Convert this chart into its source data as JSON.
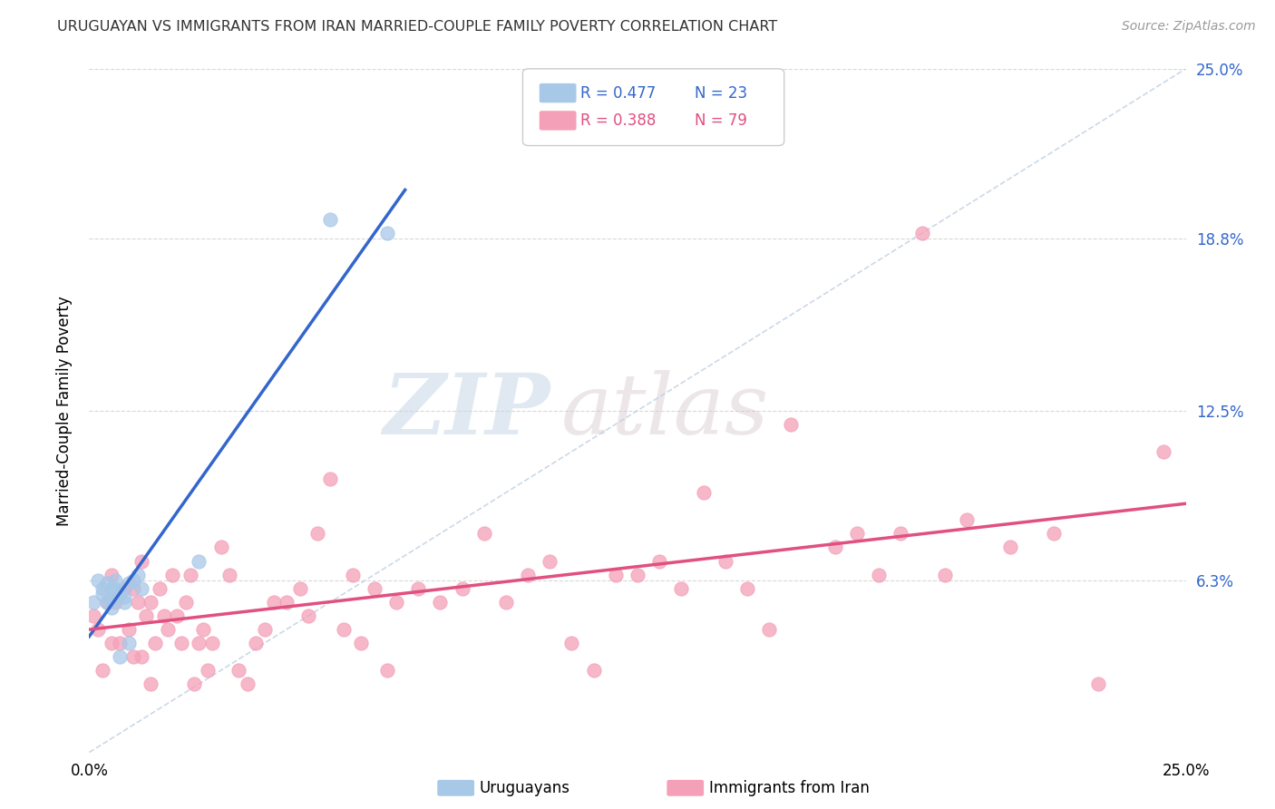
{
  "title": "URUGUAYAN VS IMMIGRANTS FROM IRAN MARRIED-COUPLE FAMILY POVERTY CORRELATION CHART",
  "source": "Source: ZipAtlas.com",
  "ylabel": "Married-Couple Family Poverty",
  "xlim": [
    0,
    0.25
  ],
  "ylim": [
    0,
    0.25
  ],
  "legend_r1": "R = 0.477",
  "legend_n1": "N = 23",
  "legend_r2": "R = 0.388",
  "legend_n2": "N = 79",
  "color_uruguayan": "#a8c8e8",
  "color_iran": "#f4a0b8",
  "color_trend_uruguayan": "#3366cc",
  "color_trend_iran": "#e05080",
  "color_diagonal": "#c0cfe0",
  "watermark_zip": "ZIP",
  "watermark_atlas": "atlas",
  "uruguayan_x": [
    0.001,
    0.002,
    0.003,
    0.003,
    0.004,
    0.004,
    0.005,
    0.005,
    0.005,
    0.006,
    0.006,
    0.007,
    0.007,
    0.008,
    0.008,
    0.009,
    0.009,
    0.01,
    0.011,
    0.012,
    0.025,
    0.055,
    0.068
  ],
  "uruguayan_y": [
    0.055,
    0.063,
    0.06,
    0.058,
    0.062,
    0.055,
    0.06,
    0.056,
    0.053,
    0.06,
    0.063,
    0.058,
    0.035,
    0.055,
    0.057,
    0.062,
    0.04,
    0.063,
    0.065,
    0.06,
    0.07,
    0.195,
    0.19
  ],
  "iran_x": [
    0.001,
    0.002,
    0.003,
    0.004,
    0.005,
    0.005,
    0.006,
    0.007,
    0.008,
    0.009,
    0.01,
    0.01,
    0.011,
    0.012,
    0.012,
    0.013,
    0.014,
    0.014,
    0.015,
    0.016,
    0.017,
    0.018,
    0.019,
    0.02,
    0.021,
    0.022,
    0.023,
    0.024,
    0.025,
    0.026,
    0.027,
    0.028,
    0.03,
    0.032,
    0.034,
    0.036,
    0.038,
    0.04,
    0.042,
    0.045,
    0.048,
    0.05,
    0.052,
    0.055,
    0.058,
    0.06,
    0.062,
    0.065,
    0.068,
    0.07,
    0.075,
    0.08,
    0.085,
    0.09,
    0.095,
    0.1,
    0.105,
    0.11,
    0.115,
    0.12,
    0.125,
    0.13,
    0.135,
    0.14,
    0.145,
    0.15,
    0.155,
    0.16,
    0.17,
    0.175,
    0.18,
    0.185,
    0.19,
    0.195,
    0.2,
    0.21,
    0.22,
    0.23,
    0.245
  ],
  "iran_y": [
    0.05,
    0.045,
    0.03,
    0.055,
    0.065,
    0.04,
    0.055,
    0.04,
    0.06,
    0.045,
    0.06,
    0.035,
    0.055,
    0.07,
    0.035,
    0.05,
    0.025,
    0.055,
    0.04,
    0.06,
    0.05,
    0.045,
    0.065,
    0.05,
    0.04,
    0.055,
    0.065,
    0.025,
    0.04,
    0.045,
    0.03,
    0.04,
    0.075,
    0.065,
    0.03,
    0.025,
    0.04,
    0.045,
    0.055,
    0.055,
    0.06,
    0.05,
    0.08,
    0.1,
    0.045,
    0.065,
    0.04,
    0.06,
    0.03,
    0.055,
    0.06,
    0.055,
    0.06,
    0.08,
    0.055,
    0.065,
    0.07,
    0.04,
    0.03,
    0.065,
    0.065,
    0.07,
    0.06,
    0.095,
    0.07,
    0.06,
    0.045,
    0.12,
    0.075,
    0.08,
    0.065,
    0.08,
    0.19,
    0.065,
    0.085,
    0.075,
    0.08,
    0.025,
    0.11
  ],
  "trend_u_x0": 0.0,
  "trend_u_x1": 0.072,
  "trend_i_x0": 0.0,
  "trend_i_x1": 0.25
}
